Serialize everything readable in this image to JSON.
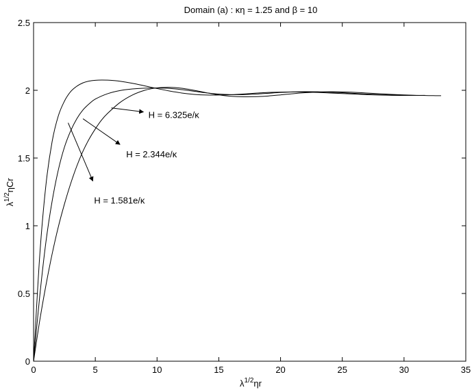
{
  "chart_data": {
    "type": "line",
    "title": "Domain (a) : κη = 1.25 and β = 10",
    "xlabel": {
      "base": "λ",
      "sup": "1/2",
      "rest": "ηr"
    },
    "ylabel": {
      "base": "λ",
      "sup": "1/2",
      "rest": "ηCr"
    },
    "xlim": [
      0,
      35
    ],
    "ylim": [
      0,
      2.5
    ],
    "xticks": [
      "0",
      "5",
      "10",
      "15",
      "20",
      "25",
      "30",
      "35"
    ],
    "yticks": [
      "0",
      "0.5",
      "1",
      "1.5",
      "2",
      "2.5"
    ],
    "grid": false,
    "series": [
      {
        "name": "H = 1.581e/κ",
        "x": [
          0,
          0.5,
          1,
          1.5,
          2,
          2.5,
          3,
          3.5,
          4,
          4.5,
          5,
          5.5,
          6,
          6.5,
          7,
          8,
          9,
          10,
          11,
          12,
          13,
          14,
          15,
          16,
          17,
          18,
          19,
          20,
          21,
          22,
          23,
          24,
          25,
          26,
          27,
          28,
          29,
          30,
          31,
          31.7
        ],
        "y": [
          0,
          0.78,
          1.3,
          1.62,
          1.81,
          1.92,
          1.99,
          2.03,
          2.055,
          2.068,
          2.074,
          2.076,
          2.075,
          2.072,
          2.067,
          2.052,
          2.033,
          2.013,
          1.995,
          1.98,
          1.97,
          1.965,
          1.965,
          1.968,
          1.973,
          1.979,
          1.984,
          1.987,
          1.988,
          1.987,
          1.984,
          1.98,
          1.976,
          1.972,
          1.968,
          1.965,
          1.963,
          1.962,
          1.962,
          1.963
        ]
      },
      {
        "name": "H = 2.344e/κ",
        "x": [
          0,
          0.5,
          1,
          1.5,
          2,
          2.5,
          3,
          3.5,
          4,
          4.5,
          5,
          6,
          7,
          8,
          9,
          10,
          11,
          12,
          13,
          14,
          15,
          16,
          17,
          18,
          19,
          20,
          21,
          22,
          23,
          24,
          25,
          26,
          27,
          28,
          29,
          30,
          31,
          31.5
        ],
        "y": [
          0,
          0.48,
          0.88,
          1.18,
          1.41,
          1.58,
          1.7,
          1.79,
          1.855,
          1.9,
          1.935,
          1.975,
          1.998,
          2.01,
          2.016,
          2.017,
          2.014,
          2.005,
          1.993,
          1.981,
          1.972,
          1.968,
          1.968,
          1.972,
          1.978,
          1.984,
          1.988,
          1.99,
          1.989,
          1.986,
          1.982,
          1.977,
          1.972,
          1.968,
          1.965,
          1.963,
          1.962,
          1.962
        ]
      },
      {
        "name": "H = 6.325e/κ",
        "x": [
          0,
          0.5,
          1,
          1.5,
          2,
          2.5,
          3,
          3.5,
          4,
          4.5,
          5,
          5.5,
          6,
          7,
          8,
          9,
          10,
          11,
          12,
          13,
          14,
          15,
          16,
          17,
          18,
          19,
          20,
          21,
          22,
          23,
          24,
          25,
          26,
          27,
          28,
          29,
          30,
          31,
          32,
          33
        ],
        "y": [
          0,
          0.3,
          0.56,
          0.79,
          0.99,
          1.16,
          1.31,
          1.44,
          1.55,
          1.64,
          1.715,
          1.78,
          1.83,
          1.91,
          1.965,
          2.0,
          2.018,
          2.022,
          2.015,
          2.0,
          1.982,
          1.966,
          1.956,
          1.952,
          1.953,
          1.958,
          1.966,
          1.975,
          1.982,
          1.987,
          1.989,
          1.988,
          1.985,
          1.98,
          1.975,
          1.97,
          1.966,
          1.963,
          1.961,
          1.96
        ]
      }
    ],
    "annotations": [
      {
        "text": "H = 6.325e/κ",
        "text_at": [
          9.3,
          1.82
        ],
        "arrow_from": [
          6.3,
          1.87
        ],
        "arrow_to": [
          8.9,
          1.84
        ]
      },
      {
        "text": "H = 2.344e/κ",
        "text_at": [
          7.5,
          1.53
        ],
        "arrow_from": [
          4,
          1.79
        ],
        "arrow_to": [
          7,
          1.6
        ]
      },
      {
        "text": "H = 1.581e/κ",
        "text_at": [
          4.9,
          1.19
        ],
        "arrow_from": [
          2.8,
          1.76
        ],
        "arrow_to": [
          4.8,
          1.33
        ]
      }
    ]
  }
}
